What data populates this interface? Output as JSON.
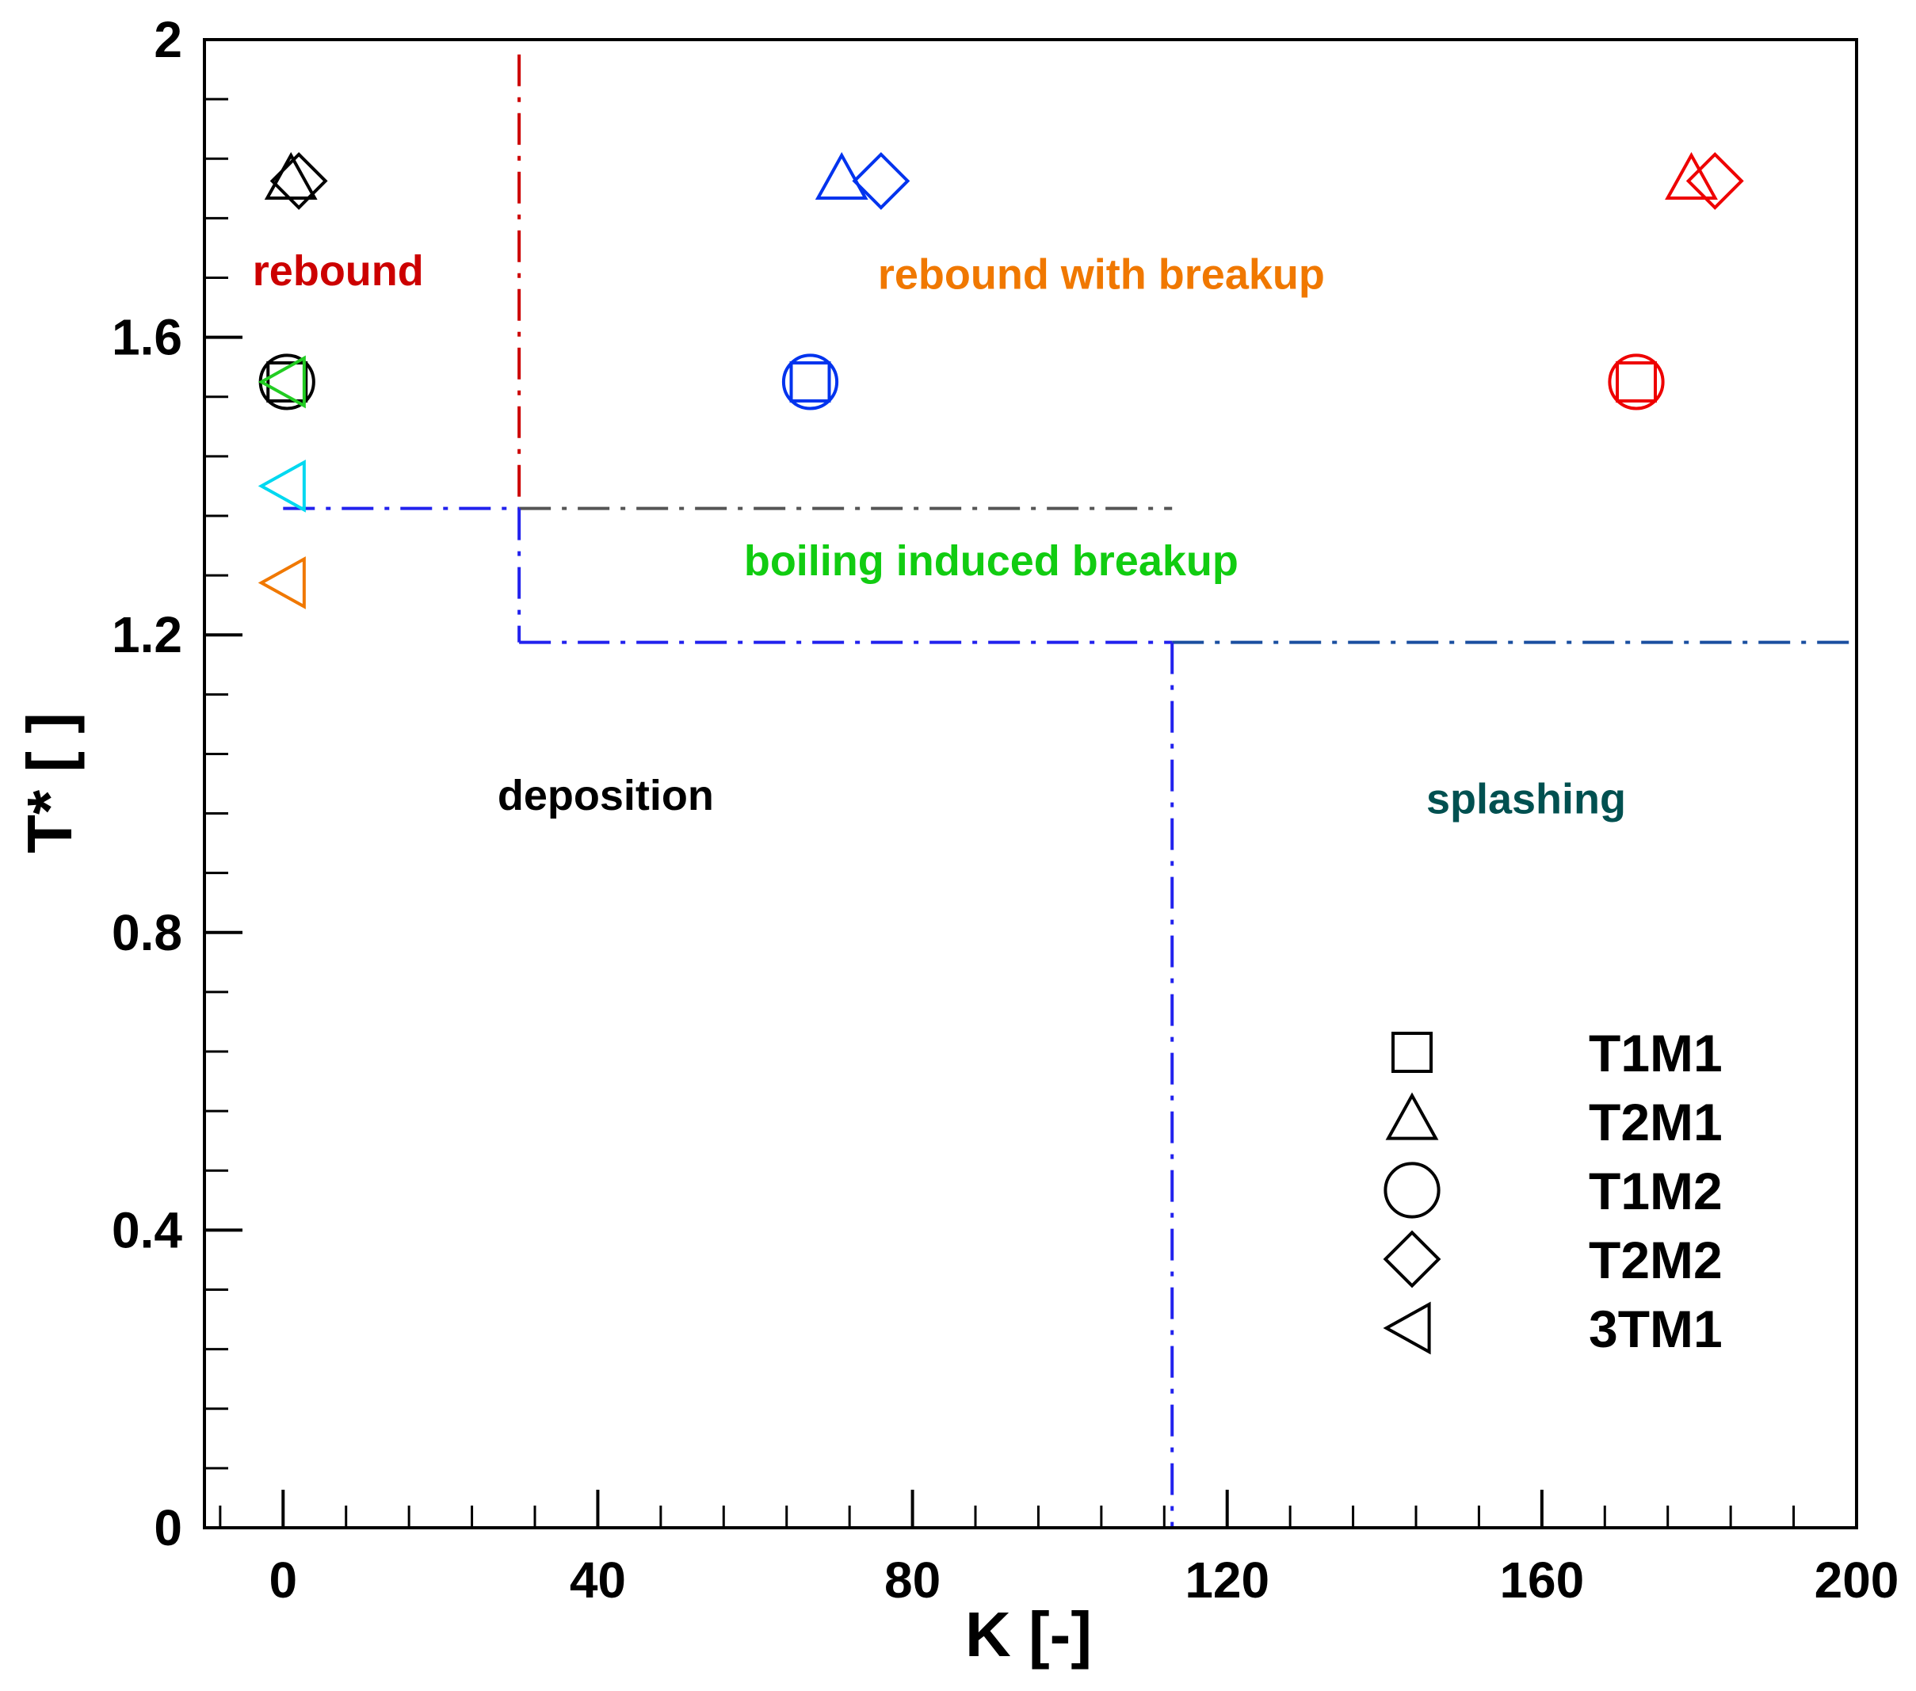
{
  "chart_data": {
    "type": "scatter",
    "title": "",
    "xlabel": "K [-]",
    "ylabel": "T* [ ]",
    "xlim": [
      -10,
      200
    ],
    "ylim": [
      0,
      2
    ],
    "x_ticks": [
      {
        "value": 0,
        "label": "0"
      },
      {
        "value": 40,
        "label": "40"
      },
      {
        "value": 80,
        "label": "80"
      },
      {
        "value": 120,
        "label": "120"
      },
      {
        "value": 160,
        "label": "160"
      },
      {
        "value": 200,
        "label": "200"
      }
    ],
    "y_ticks": [
      {
        "value": 0,
        "label": "0"
      },
      {
        "value": 0.4,
        "label": "0.4"
      },
      {
        "value": 0.8,
        "label": "0.8"
      },
      {
        "value": 1.2,
        "label": "1.2"
      },
      {
        "value": 1.6,
        "label": "1.6"
      },
      {
        "value": 2,
        "label": "2"
      }
    ],
    "series": [
      {
        "name": "T1M1",
        "marker": "square",
        "points": [
          {
            "x": 0.5,
            "y": 1.54,
            "color": "#000000"
          },
          {
            "x": 67,
            "y": 1.54,
            "color": "#0033ee"
          },
          {
            "x": 172,
            "y": 1.54,
            "color": "#ee0000"
          }
        ]
      },
      {
        "name": "T2M1",
        "marker": "triangle-up",
        "points": [
          {
            "x": 1,
            "y": 1.81,
            "color": "#000000"
          },
          {
            "x": 71,
            "y": 1.81,
            "color": "#0033ee"
          },
          {
            "x": 179,
            "y": 1.81,
            "color": "#ee0000"
          }
        ]
      },
      {
        "name": "T1M2",
        "marker": "circle",
        "points": [
          {
            "x": 0.5,
            "y": 1.54,
            "color": "#000000"
          },
          {
            "x": 67,
            "y": 1.54,
            "color": "#0033ee"
          },
          {
            "x": 172,
            "y": 1.54,
            "color": "#ee0000"
          }
        ]
      },
      {
        "name": "T2M2",
        "marker": "diamond",
        "points": [
          {
            "x": 2,
            "y": 1.81,
            "color": "#000000"
          },
          {
            "x": 76,
            "y": 1.81,
            "color": "#0033ee"
          },
          {
            "x": 182,
            "y": 1.81,
            "color": "#ee0000"
          }
        ]
      },
      {
        "name": "3TM1",
        "marker": "triangle-left",
        "points": [
          {
            "x": 0.5,
            "y": 1.54,
            "color": "#22cc22"
          },
          {
            "x": 0.5,
            "y": 1.4,
            "color": "#00d8f0"
          },
          {
            "x": 0.5,
            "y": 1.27,
            "color": "#f07800"
          }
        ]
      }
    ],
    "boundaries": [
      {
        "name": "rebound-boundary",
        "color": "#cc0000",
        "points": [
          [
            30,
            1.98
          ],
          [
            30,
            1.37
          ]
        ]
      },
      {
        "name": "boiling-top-left",
        "color": "#2222ee",
        "points": [
          [
            0,
            1.37
          ],
          [
            30,
            1.37
          ]
        ]
      },
      {
        "name": "boiling-top-right",
        "color": "#555555",
        "points": [
          [
            30,
            1.37
          ],
          [
            113,
            1.37
          ]
        ]
      },
      {
        "name": "boiling-left",
        "color": "#2222ee",
        "points": [
          [
            30,
            1.37
          ],
          [
            30,
            1.19
          ]
        ]
      },
      {
        "name": "deposition-top",
        "color": "#2222ee",
        "points": [
          [
            30,
            1.19
          ],
          [
            113,
            1.19
          ]
        ]
      },
      {
        "name": "splashing-top",
        "color": "#1a4fa0",
        "points": [
          [
            113,
            1.19
          ],
          [
            200,
            1.19
          ]
        ]
      },
      {
        "name": "splashing-left",
        "color": "#2222ee",
        "points": [
          [
            113,
            1.19
          ],
          [
            113,
            0
          ]
        ]
      }
    ],
    "annotations": [
      {
        "text": "rebound",
        "x": 7,
        "y": 1.67,
        "color": "#cc0000"
      },
      {
        "text": "rebound with breakup",
        "x": 104,
        "y": 1.665,
        "color": "#f07800"
      },
      {
        "text": "boiling induced breakup",
        "x": 90,
        "y": 1.28,
        "color": "#11cc11"
      },
      {
        "text": "deposition",
        "x": 41,
        "y": 0.965,
        "color": "#000000"
      },
      {
        "text": "splashing",
        "x": 158,
        "y": 0.96,
        "color": "#005050"
      }
    ],
    "legend": {
      "placement": "bottom-right"
    }
  }
}
